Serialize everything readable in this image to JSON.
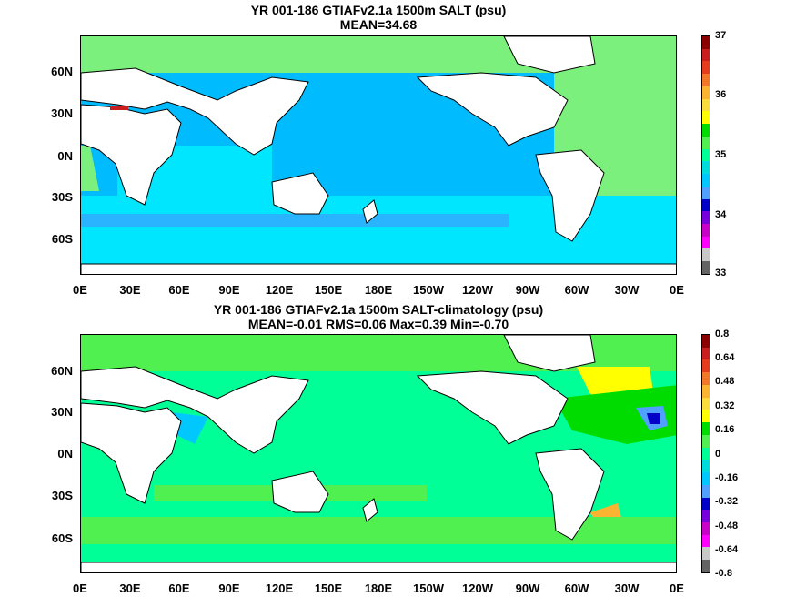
{
  "panels": [
    {
      "title_line1": "YR 001-186 GTIAFv2.1a 1500m SALT (psu)",
      "title_line2": "MEAN=34.68",
      "colorbar_labels": [
        "37",
        "36",
        "35",
        "34",
        "33"
      ],
      "colorbar_colors": [
        "#8b0000",
        "#c81e1e",
        "#e63c1e",
        "#f07828",
        "#fab432",
        "#fadc3c",
        "#ffff00",
        "#00dc00",
        "#50f050",
        "#00ff96",
        "#00dcdc",
        "#00c8ff",
        "#50a0ff",
        "#0000c8",
        "#7800dc",
        "#c800c8",
        "#ff00ff",
        "#c8c8c8",
        "#646464"
      ],
      "ocean_color": "#00bcff"
    },
    {
      "title_line1": "YR 001-186 GTIAFv2.1a 1500m SALT-climatology (psu)",
      "title_line2": "MEAN=-0.01   RMS=0.06   Max=0.39   Min=-0.70",
      "colorbar_labels": [
        "0.8",
        "0.64",
        "0.48",
        "0.32",
        "0.16",
        "0",
        "-0.16",
        "-0.32",
        "-0.48",
        "-0.64",
        "-0.8"
      ],
      "colorbar_colors": [
        "#8b0000",
        "#c81e1e",
        "#e63c1e",
        "#f07828",
        "#fab432",
        "#fadc3c",
        "#ffff00",
        "#00dc00",
        "#50f050",
        "#00ff96",
        "#00dcdc",
        "#00c8ff",
        "#50a0ff",
        "#0000c8",
        "#7800dc",
        "#c800c8",
        "#ff00ff",
        "#c8c8c8",
        "#646464"
      ],
      "ocean_color": "#00ff96"
    }
  ],
  "axes": {
    "lat_labels": [
      "60N",
      "30N",
      "0N",
      "30S",
      "60S"
    ],
    "lon_labels": [
      "0E",
      "30E",
      "60E",
      "90E",
      "120E",
      "150E",
      "180E",
      "150W",
      "120W",
      "90W",
      "60W",
      "30W",
      "0E"
    ]
  }
}
